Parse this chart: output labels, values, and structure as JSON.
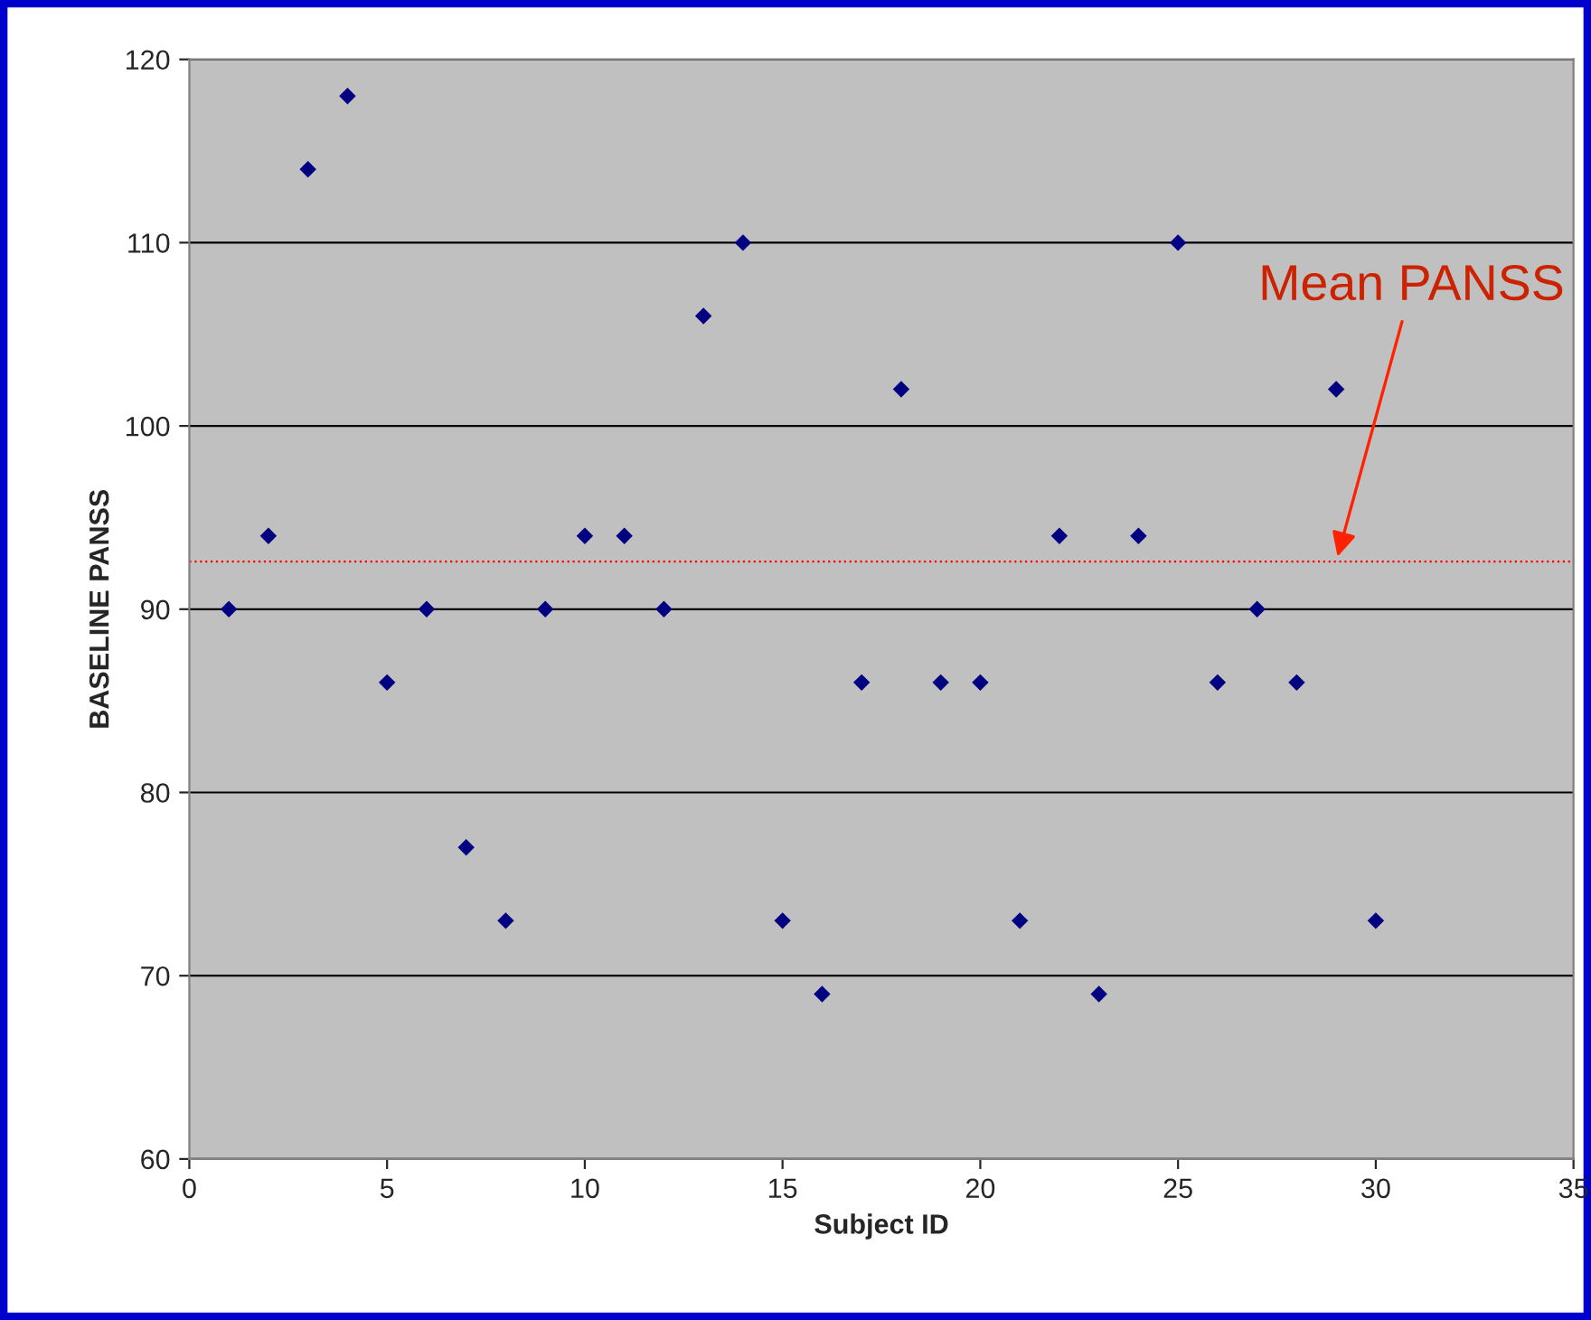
{
  "chart_data": {
    "type": "scatter",
    "xlabel": "Subject ID",
    "ylabel": "BASELINE PANSS",
    "x": [
      1,
      2,
      3,
      4,
      5,
      6,
      7,
      8,
      9,
      10,
      11,
      12,
      13,
      14,
      15,
      16,
      17,
      18,
      19,
      20,
      21,
      22,
      23,
      24,
      25,
      26,
      27,
      28,
      29,
      30
    ],
    "series": [
      {
        "color": "#000080",
        "values": [
          90,
          94,
          114,
          118,
          86,
          90,
          77,
          73,
          90,
          94,
          94,
          90,
          106,
          110,
          73,
          69,
          86,
          102,
          86,
          86,
          73,
          94,
          69,
          94,
          110,
          86,
          90,
          86,
          102,
          73
        ]
      }
    ],
    "xlim": [
      0,
      35
    ],
    "xticks": [
      0,
      5,
      10,
      15,
      20,
      25,
      30,
      35
    ],
    "ylim": [
      60,
      120
    ],
    "yticks": [
      60,
      70,
      80,
      90,
      100,
      110,
      120
    ],
    "grid": "y",
    "marker": "diamond",
    "legend": false,
    "ref_lines": [
      {
        "axis": "y",
        "value": 92.6,
        "color": "#ff0000",
        "line_style": "dotted"
      }
    ],
    "annotations": [
      {
        "text": "Mean PANSS",
        "x": 29,
        "y": 92.6
      }
    ]
  }
}
